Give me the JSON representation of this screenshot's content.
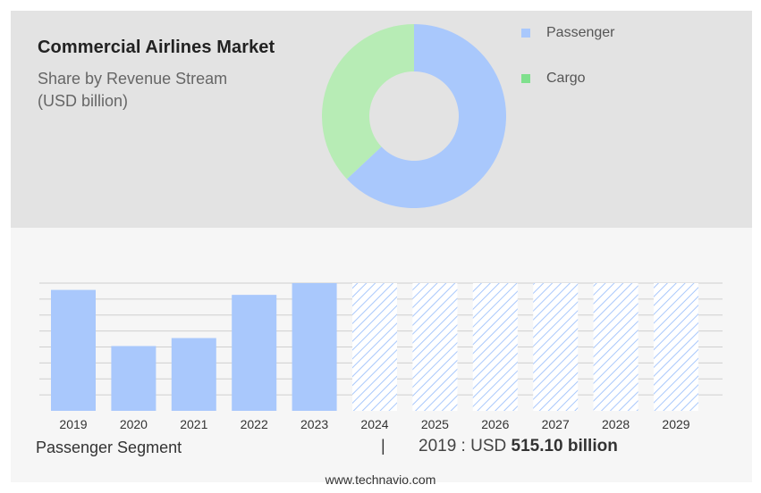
{
  "header": {
    "title": "Commercial Airlines Market",
    "subtitle": "Share by Revenue Stream\n(USD billion)"
  },
  "colors": {
    "passenger": "#a9c8fc",
    "cargo": "#b7ecb5",
    "hatch": "#a9c8fc"
  },
  "chart_data": [
    {
      "type": "pie",
      "variant": "donut",
      "series": [
        {
          "name": "Passenger",
          "value": 63
        },
        {
          "name": "Cargo",
          "value": 37
        }
      ]
    },
    {
      "type": "bar",
      "categories": [
        "2019",
        "2020",
        "2021",
        "2022",
        "2023",
        "2024",
        "2025",
        "2026",
        "2027",
        "2028",
        "2029"
      ],
      "values": [
        515.1,
        276.0,
        310.0,
        494.0,
        544.0,
        544.0,
        544.0,
        544.0,
        544.0,
        544.0,
        544.0
      ],
      "forecast_from": "2024",
      "ylim": [
        0,
        544
      ],
      "grid": true
    }
  ],
  "legend": {
    "items": [
      {
        "label": "Passenger",
        "color": "#a9c8fc"
      },
      {
        "label": "Cargo",
        "color": "#7fe08d"
      }
    ]
  },
  "footer": {
    "segment_label": "Passenger Segment",
    "divider": "|",
    "value_prefix": "2019 : USD ",
    "value_bold": "515.10 billion"
  },
  "website": "www.technavio.com"
}
